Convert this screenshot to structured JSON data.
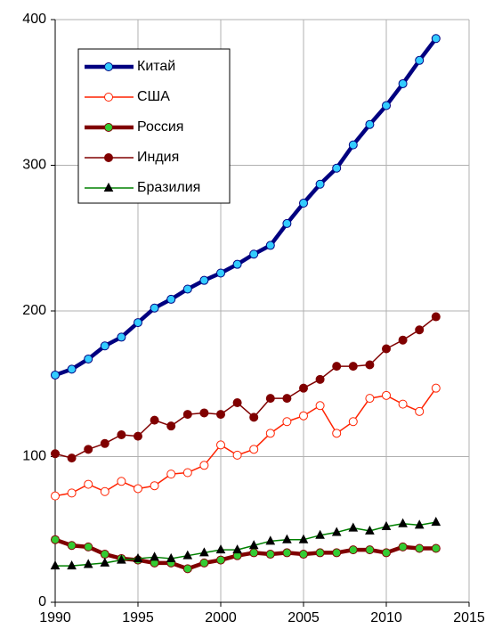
{
  "chart_data": {
    "type": "line",
    "x": [
      1990,
      1991,
      1992,
      1993,
      1994,
      1995,
      1996,
      1997,
      1998,
      1999,
      2000,
      2001,
      2002,
      2003,
      2004,
      2005,
      2006,
      2007,
      2008,
      2009,
      2010,
      2011,
      2012,
      2013
    ],
    "series": [
      {
        "name": "Китай",
        "color": "#000080",
        "linewidth": 4.5,
        "marker": "circle",
        "marker_color": "#33ccff",
        "marker_edge": "#000080",
        "values": [
          156,
          160,
          167,
          176,
          182,
          192,
          202,
          208,
          215,
          221,
          226,
          232,
          239,
          245,
          260,
          274,
          287,
          298,
          314,
          328,
          341,
          356,
          372,
          387
        ]
      },
      {
        "name": "США",
        "color": "#ff2200",
        "linewidth": 1.5,
        "marker": "circle",
        "marker_color": "#ffffff",
        "marker_edge": "#ff2200",
        "values": [
          73,
          75,
          81,
          76,
          83,
          78,
          80,
          88,
          89,
          94,
          108,
          101,
          105,
          116,
          124,
          128,
          135,
          116,
          124,
          140,
          142,
          136,
          131,
          147
        ]
      },
      {
        "name": "Россия",
        "color": "#800000",
        "linewidth": 4.5,
        "marker": "circle",
        "marker_color": "#33cc33",
        "marker_edge": "#800000",
        "values": [
          43,
          39,
          38,
          33,
          30,
          29,
          27,
          27,
          23,
          27,
          29,
          32,
          34,
          33,
          34,
          33,
          34,
          34,
          36,
          36,
          34,
          38,
          37,
          37
        ]
      },
      {
        "name": "Индия",
        "color": "#800000",
        "linewidth": 1.5,
        "marker": "circle",
        "marker_color": "#800000",
        "marker_edge": "#800000",
        "values": [
          102,
          99,
          105,
          109,
          115,
          114,
          125,
          121,
          129,
          130,
          129,
          137,
          127,
          140,
          140,
          147,
          153,
          162,
          162,
          163,
          174,
          180,
          187,
          196
        ]
      },
      {
        "name": "Бразилия",
        "color": "#008000",
        "linewidth": 1.5,
        "marker": "triangle",
        "marker_color": "#000000",
        "marker_edge": "#000000",
        "values": [
          25,
          25,
          26,
          27,
          29,
          30,
          31,
          30,
          32,
          34,
          36,
          36,
          39,
          42,
          43,
          43,
          46,
          48,
          51,
          49,
          52,
          54,
          53,
          55
        ]
      }
    ],
    "xlim": [
      1990,
      2015
    ],
    "xticks": [
      1990,
      1995,
      2000,
      2005,
      2010,
      2015
    ],
    "ylim": [
      0,
      400
    ],
    "yticks": [
      0,
      100,
      200,
      300,
      400
    ],
    "grid": true,
    "legend": "upper left"
  }
}
